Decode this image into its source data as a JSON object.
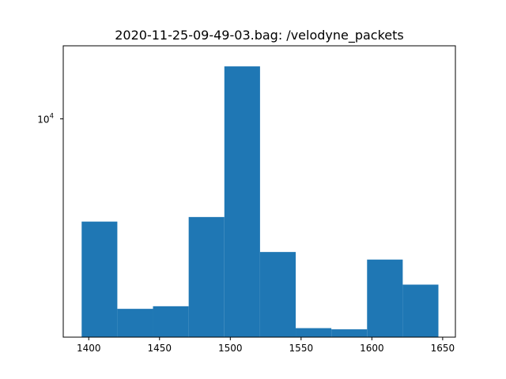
{
  "chart_data": {
    "type": "bar",
    "title": "2020-11-25-09-49-03.bag: /velodyne_packets",
    "xlabel": "",
    "ylabel": "",
    "y_scale": "log",
    "bar_color": "#1f77b4",
    "x_ticks": [
      1400,
      1450,
      1500,
      1550,
      1600,
      1650
    ],
    "y_ticks": [
      {
        "base": "10",
        "exponent": "4",
        "value": 10000
      }
    ],
    "xlim": [
      1382,
      1659
    ],
    "ylim": [
      2700,
      15500
    ],
    "bins": [
      {
        "start": 1395,
        "end": 1420.2,
        "count": 5400
      },
      {
        "start": 1420.2,
        "end": 1445.4,
        "count": 3200
      },
      {
        "start": 1445.4,
        "end": 1470.6,
        "count": 3250
      },
      {
        "start": 1470.6,
        "end": 1495.8,
        "count": 5550
      },
      {
        "start": 1495.8,
        "end": 1521,
        "count": 13700
      },
      {
        "start": 1521,
        "end": 1546.2,
        "count": 4500
      },
      {
        "start": 1546.2,
        "end": 1571.4,
        "count": 2850
      },
      {
        "start": 1571.4,
        "end": 1596.6,
        "count": 2830
      },
      {
        "start": 1596.6,
        "end": 1621.8,
        "count": 4300
      },
      {
        "start": 1621.8,
        "end": 1647,
        "count": 3700
      }
    ],
    "grid": false,
    "legend": "none"
  }
}
